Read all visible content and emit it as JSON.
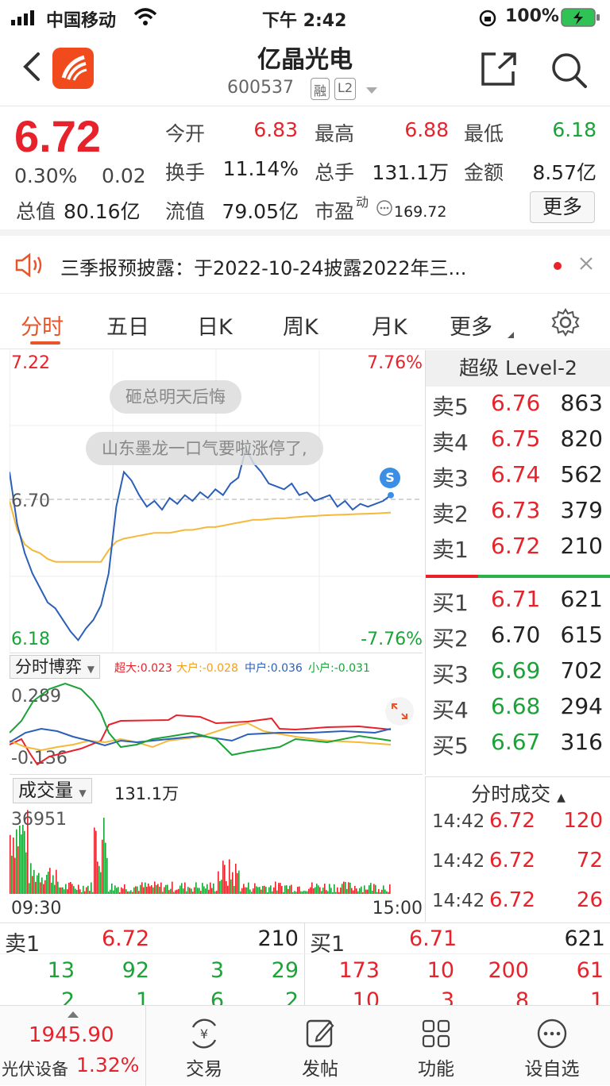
{
  "status_bar": {
    "carrier": "中国移动",
    "time": "下午 2:42",
    "battery": "100%"
  },
  "header": {
    "title": "亿晶光电",
    "code": "600537",
    "tag_rong": "融",
    "tag_l2": "L2"
  },
  "quote": {
    "price": "6.72",
    "change_pct": "0.30%",
    "change": "0.02",
    "total_value_label": "总值",
    "total_value": "80.16亿",
    "open_label": "今开",
    "open": "6.83",
    "high_label": "最高",
    "high": "6.88",
    "low_label": "最低",
    "low": "6.18",
    "turnover_label": "换手",
    "turnover": "11.14%",
    "volume_label": "总手",
    "volume": "131.1万",
    "amount_label": "金额",
    "amount": "8.57亿",
    "float_label": "流值",
    "float_value": "79.05亿",
    "pe_label": "市盈",
    "pe_sup": "动",
    "pe": "169.72",
    "more_button": "更多"
  },
  "notice": {
    "text": "三季报预披露：于2022-10-24披露2022年三..."
  },
  "tabs": [
    "分时",
    "五日",
    "日K",
    "周K",
    "月K",
    "更多"
  ],
  "chart": {
    "y_top": "7.22",
    "y_bottom": "6.18",
    "y_mid": "6.70",
    "pct_top": "7.76%",
    "pct_bottom": "-7.76%",
    "bubble1": "砸总明天后悔",
    "bubble2": "山东墨龙一口气要啦涨停了,",
    "marker": "S"
  },
  "chart_data": {
    "type": "line",
    "ylim": [
      6.18,
      7.22
    ],
    "series": [
      {
        "name": "price",
        "values": [
          6.8,
          6.62,
          6.52,
          6.45,
          6.4,
          6.35,
          6.33,
          6.29,
          6.25,
          6.22,
          6.26,
          6.29,
          6.34,
          6.45,
          6.68,
          6.8,
          6.77,
          6.72,
          6.68,
          6.7,
          6.67,
          6.71,
          6.69,
          6.72,
          6.7,
          6.73,
          6.71,
          6.74,
          6.72,
          6.76,
          6.78,
          6.88,
          6.83,
          6.8,
          6.76,
          6.75,
          6.74,
          6.76,
          6.72,
          6.73,
          6.7,
          6.71,
          6.72,
          6.68,
          6.7,
          6.67,
          6.69,
          6.68,
          6.69,
          6.7,
          6.72
        ]
      },
      {
        "name": "avg",
        "values": [
          6.7,
          6.6,
          6.55,
          6.53,
          6.52,
          6.5,
          6.49,
          6.49,
          6.49,
          6.49,
          6.49,
          6.49,
          6.49,
          6.53,
          6.56,
          6.57,
          6.575,
          6.58,
          6.585,
          6.59,
          6.59,
          6.59,
          6.595,
          6.6,
          6.6,
          6.605,
          6.61,
          6.61,
          6.615,
          6.62,
          6.625,
          6.63,
          6.635,
          6.635,
          6.638,
          6.64,
          6.64,
          6.643,
          6.645,
          6.647,
          6.648,
          6.65,
          6.651,
          6.652,
          6.653,
          6.654,
          6.655,
          6.656,
          6.657,
          6.658,
          6.66
        ]
      }
    ]
  },
  "game": {
    "label": "分时博弈",
    "super_label": "超大:0.023",
    "big_label": "大户:-0.028",
    "mid_label": "中户:0.036",
    "small_label": "小户:-0.031",
    "y_top": "0.289",
    "y_bottom": "-0.136"
  },
  "volume": {
    "label": "成交量",
    "total": "131.1万",
    "max": "36951",
    "t_start": "09:30",
    "t_end": "15:00"
  },
  "book": {
    "header": "超级 Level-2",
    "asks": [
      {
        "label": "卖5",
        "price": "6.76",
        "vol": "863"
      },
      {
        "label": "卖4",
        "price": "6.75",
        "vol": "820"
      },
      {
        "label": "卖3",
        "price": "6.74",
        "vol": "562"
      },
      {
        "label": "卖2",
        "price": "6.73",
        "vol": "379"
      },
      {
        "label": "卖1",
        "price": "6.72",
        "vol": "210"
      }
    ],
    "bids": [
      {
        "label": "买1",
        "price": "6.71",
        "vol": "621"
      },
      {
        "label": "买2",
        "price": "6.70",
        "vol": "615"
      },
      {
        "label": "买3",
        "price": "6.69",
        "vol": "702"
      },
      {
        "label": "买4",
        "price": "6.68",
        "vol": "294"
      },
      {
        "label": "买5",
        "price": "6.67",
        "vol": "316"
      }
    ]
  },
  "ticks": {
    "header": "分时成交",
    "rows": [
      {
        "time": "14:42",
        "price": "6.72",
        "vol": "120"
      },
      {
        "time": "14:42",
        "price": "6.72",
        "vol": "72"
      },
      {
        "time": "14:42",
        "price": "6.72",
        "vol": "26"
      }
    ]
  },
  "queue": {
    "sell_label": "卖1",
    "sell_price": "6.72",
    "sell_vol": "210",
    "buy_label": "买1",
    "buy_price": "6.71",
    "buy_vol": "621",
    "sell_row1": [
      "13",
      "92",
      "3",
      "29"
    ],
    "sell_row2": [
      "2",
      "1",
      "6",
      "2"
    ],
    "buy_row1": [
      "173",
      "10",
      "200",
      "61"
    ],
    "buy_row2": [
      "10",
      "3",
      "8",
      "1"
    ]
  },
  "tabbar": {
    "index_value": "1945.90",
    "index_name": "光伏设备",
    "index_pct": "1.32%",
    "items": [
      "交易",
      "发帖",
      "功能",
      "设自选"
    ]
  }
}
